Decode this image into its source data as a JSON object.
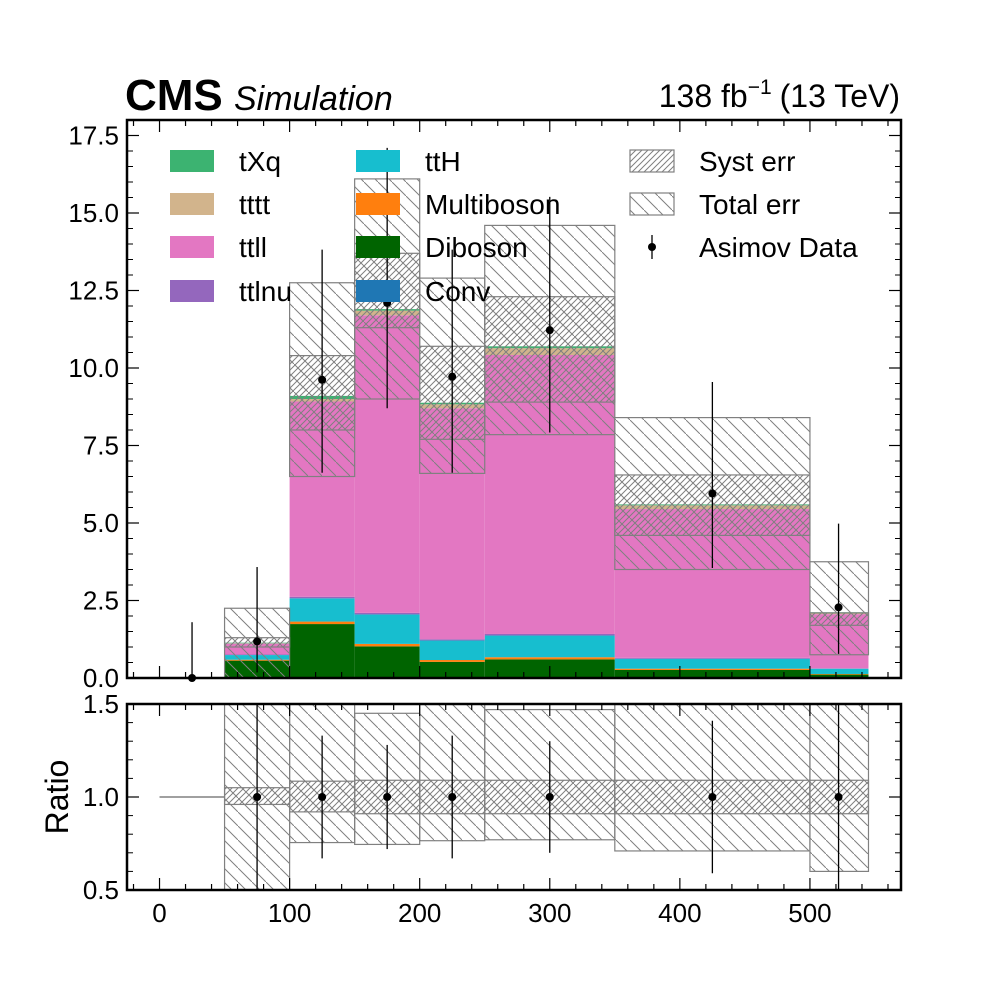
{
  "header": {
    "experiment": "CMS",
    "tag": "Simulation",
    "lumi_value": "138 fb",
    "lumi_exp": "−1",
    "lumi_energy": "(13 TeV)"
  },
  "chart_data": [
    {
      "type": "bar",
      "stacked": true,
      "histogram": true,
      "bin_edges": [
        0,
        50,
        100,
        150,
        200,
        250,
        350,
        500,
        545
      ],
      "xlim": [
        -25,
        570
      ],
      "ylim": [
        0,
        18
      ],
      "y_ticks": [
        "0.0",
        "2.5",
        "5.0",
        "7.5",
        "10.0",
        "12.5",
        "15.0",
        "17.5"
      ],
      "y_tick_values": [
        0,
        2.5,
        5,
        7.5,
        10,
        12.5,
        15,
        17.5
      ],
      "ylabel": "",
      "legend_position": "top",
      "series": [
        {
          "name": "Conv",
          "color": "#1f77b4",
          "values": [
            0,
            0.01,
            0.02,
            0.02,
            0.02,
            0.02,
            0.01,
            0.01
          ]
        },
        {
          "name": "Diboson",
          "color": "#006400",
          "values": [
            0,
            0.55,
            1.72,
            1.0,
            0.5,
            0.58,
            0.25,
            0.1
          ]
        },
        {
          "name": "Multiboson",
          "color": "#ff7f0e",
          "values": [
            0,
            0.03,
            0.08,
            0.08,
            0.06,
            0.07,
            0.04,
            0.02
          ]
        },
        {
          "name": "ttH",
          "color": "#17becf",
          "values": [
            0,
            0.15,
            0.75,
            0.95,
            0.63,
            0.7,
            0.32,
            0.17
          ]
        },
        {
          "name": "ttlnu",
          "color": "#9467bd",
          "values": [
            0,
            0.02,
            0.05,
            0.05,
            0.04,
            0.05,
            0.03,
            0.01
          ]
        },
        {
          "name": "ttll",
          "color": "#e377c2",
          "values": [
            0,
            0.35,
            6.3,
            9.6,
            7.45,
            9.0,
            4.8,
            1.75
          ]
        },
        {
          "name": "tttt",
          "color": "#d2b48c",
          "values": [
            0,
            0.01,
            0.08,
            0.15,
            0.13,
            0.22,
            0.12,
            0.04
          ]
        },
        {
          "name": "tXq",
          "color": "#3cb371",
          "values": [
            0,
            0.02,
            0.1,
            0.05,
            0.05,
            0.06,
            0.03,
            0.02
          ]
        }
      ],
      "syst_err": {
        "name": "Syst err",
        "low": [
          0,
          1.0,
          8.0,
          11.3,
          7.7,
          8.9,
          4.6,
          1.7
        ],
        "high": [
          0,
          1.3,
          10.4,
          13.7,
          10.7,
          12.3,
          6.55,
          2.1
        ]
      },
      "total_err": {
        "name": "Total err",
        "low": [
          0,
          0,
          6.5,
          9.0,
          6.6,
          7.85,
          3.5,
          0.75
        ],
        "high": [
          0,
          2.25,
          12.75,
          16.1,
          12.9,
          14.6,
          8.4,
          3.75
        ]
      },
      "data": {
        "name": "Asimov Data",
        "x": [
          25,
          75,
          125,
          175,
          225,
          300,
          425,
          522
        ],
        "y": [
          0,
          1.18,
          9.62,
          12.1,
          9.72,
          11.22,
          5.95,
          2.28
        ],
        "yerr_low": [
          0,
          1.0,
          3.0,
          3.4,
          3.1,
          3.3,
          2.4,
          1.5
        ],
        "yerr_high": [
          1.8,
          2.4,
          4.2,
          5.0,
          4.1,
          4.3,
          3.6,
          2.7
        ]
      }
    },
    {
      "type": "ratio",
      "bin_edges": [
        0,
        50,
        100,
        150,
        200,
        250,
        350,
        500,
        545
      ],
      "xlim": [
        -25,
        570
      ],
      "ylim": [
        0.5,
        1.5
      ],
      "ylabel": "Ratio",
      "x_ticks": [
        "0",
        "100",
        "200",
        "300",
        "400",
        "500"
      ],
      "x_tick_values": [
        0,
        100,
        200,
        300,
        400,
        500
      ],
      "y_ticks": [
        "0.5",
        "1.0",
        "1.5"
      ],
      "y_tick_values": [
        0.5,
        1.0,
        1.5
      ],
      "syst_low": [
        1,
        0.96,
        0.92,
        0.91,
        0.91,
        0.91,
        0.91,
        0.91
      ],
      "syst_high": [
        1,
        1.05,
        1.085,
        1.09,
        1.09,
        1.09,
        1.09,
        1.09
      ],
      "total_low": [
        1,
        0.5,
        0.755,
        0.745,
        0.765,
        0.77,
        0.71,
        0.6
      ],
      "total_high": [
        1,
        1.5,
        1.5,
        1.45,
        1.5,
        1.47,
        1.5,
        1.5
      ],
      "data": {
        "x": [
          75,
          125,
          175,
          225,
          300,
          425,
          522
        ],
        "y": [
          1,
          1,
          1,
          1,
          1,
          1,
          1
        ],
        "yerr_low": [
          0.55,
          0.33,
          0.28,
          0.33,
          0.3,
          0.41,
          0.6
        ],
        "yerr_high": [
          0.55,
          0.33,
          0.28,
          0.33,
          0.3,
          0.41,
          0.55
        ]
      }
    }
  ]
}
